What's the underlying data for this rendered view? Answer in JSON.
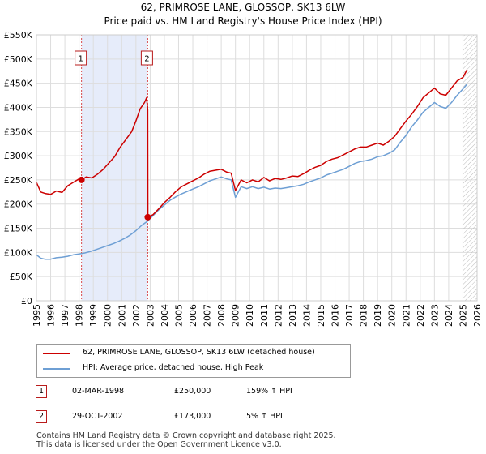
{
  "title_line1": "62, PRIMROSE LANE, GLOSSOP, SK13 6LW",
  "title_line2": "Price paid vs. HM Land Registry's House Price Index (HPI)",
  "colors": {
    "price_line": "#cc0000",
    "hpi_line": "#6e9fd4",
    "shade": "#e6ecfa",
    "grid": "#dddddd",
    "marker_border": "#b91c1c"
  },
  "legend": {
    "items": [
      {
        "label": "62, PRIMROSE LANE, GLOSSOP, SK13 6LW (detached house)"
      },
      {
        "label": "HPI: Average price, detached house, High Peak"
      }
    ]
  },
  "transactions": [
    {
      "num": "1",
      "date": "02-MAR-1998",
      "price": "£250,000",
      "hpi": "159% ↑ HPI"
    },
    {
      "num": "2",
      "date": "29-OCT-2002",
      "price": "£173,000",
      "hpi": "5% ↑ HPI"
    }
  ],
  "footer": {
    "line1": "Contains HM Land Registry data © Crown copyright and database right 2025.",
    "line2": "This data is licensed under the Open Government Licence v3.0."
  },
  "chart_data": {
    "type": "line",
    "title": "62, PRIMROSE LANE, GLOSSOP, SK13 6LW",
    "xlim": [
      1995,
      2026
    ],
    "ylim": [
      0,
      550000
    ],
    "x_ticks": [
      "1995",
      "1996",
      "1997",
      "1998",
      "1999",
      "2000",
      "2001",
      "2002",
      "2003",
      "2004",
      "2005",
      "2006",
      "2007",
      "2008",
      "2009",
      "2010",
      "2011",
      "2012",
      "2013",
      "2014",
      "2015",
      "2016",
      "2017",
      "2018",
      "2019",
      "2020",
      "2021",
      "2022",
      "2023",
      "2024",
      "2025",
      "2026"
    ],
    "y_ticks": [
      {
        "value": 0,
        "label": "£0"
      },
      {
        "value": 50000,
        "label": "£50K"
      },
      {
        "value": 100000,
        "label": "£100K"
      },
      {
        "value": 150000,
        "label": "£150K"
      },
      {
        "value": 200000,
        "label": "£200K"
      },
      {
        "value": 250000,
        "label": "£250K"
      },
      {
        "value": 300000,
        "label": "£300K"
      },
      {
        "value": 350000,
        "label": "£350K"
      },
      {
        "value": 400000,
        "label": "£400K"
      },
      {
        "value": 450000,
        "label": "£450K"
      },
      {
        "value": 500000,
        "label": "£500K"
      },
      {
        "value": 550000,
        "label": "£550K"
      }
    ],
    "shaded_ranges": [
      [
        1998.17,
        2002.83
      ]
    ],
    "hatched_from": 2025.0,
    "series": [
      {
        "name": "62, PRIMROSE LANE, GLOSSOP, SK13 6LW (detached house)",
        "x": [
          1995.0,
          1995.3,
          1995.6,
          1996.0,
          1996.4,
          1996.8,
          1997.2,
          1997.6,
          1998.0,
          1998.17,
          1998.5,
          1998.9,
          1999.3,
          1999.7,
          2000.1,
          2000.5,
          2000.9,
          2001.3,
          2001.7,
          2002.0,
          2002.3,
          2002.6,
          2002.75,
          2002.83,
          2002.84,
          2003.2,
          2003.6,
          2004.0,
          2004.4,
          2004.8,
          2005.2,
          2005.6,
          2006.0,
          2006.4,
          2006.8,
          2007.2,
          2007.6,
          2008.0,
          2008.4,
          2008.7,
          2009.0,
          2009.4,
          2009.8,
          2010.2,
          2010.6,
          2011.0,
          2011.4,
          2011.8,
          2012.2,
          2012.6,
          2013.0,
          2013.4,
          2013.8,
          2014.2,
          2014.6,
          2015.0,
          2015.4,
          2015.8,
          2016.2,
          2016.6,
          2017.0,
          2017.4,
          2017.8,
          2018.2,
          2018.6,
          2019.0,
          2019.4,
          2019.8,
          2020.2,
          2020.6,
          2021.0,
          2021.4,
          2021.8,
          2022.2,
          2022.6,
          2023.0,
          2023.4,
          2023.8,
          2024.2,
          2024.6,
          2025.0,
          2025.3
        ],
        "y": [
          245000,
          225000,
          222000,
          220000,
          227000,
          224000,
          238000,
          245000,
          252000,
          250000,
          256000,
          254000,
          262000,
          272000,
          285000,
          298000,
          318000,
          334000,
          350000,
          372000,
          397000,
          410000,
          420000,
          395000,
          173000,
          178000,
          190000,
          203000,
          214000,
          226000,
          236000,
          242000,
          248000,
          254000,
          262000,
          268000,
          270000,
          272000,
          266000,
          264000,
          228000,
          250000,
          244000,
          250000,
          246000,
          255000,
          248000,
          253000,
          251000,
          254000,
          258000,
          257000,
          263000,
          270000,
          276000,
          280000,
          288000,
          293000,
          296000,
          302000,
          308000,
          314000,
          318000,
          318000,
          322000,
          326000,
          322000,
          330000,
          340000,
          356000,
          372000,
          386000,
          402000,
          420000,
          430000,
          440000,
          428000,
          425000,
          440000,
          455000,
          462000,
          478000
        ]
      },
      {
        "name": "HPI: Average price, detached house, High Peak",
        "x": [
          1995.0,
          1995.3,
          1995.6,
          1996.0,
          1996.4,
          1996.8,
          1997.2,
          1997.6,
          1998.0,
          1998.4,
          1998.8,
          1999.2,
          1999.6,
          2000.0,
          2000.4,
          2000.8,
          2001.2,
          2001.6,
          2002.0,
          2002.4,
          2002.83,
          2003.2,
          2003.6,
          2004.0,
          2004.4,
          2004.8,
          2005.2,
          2005.6,
          2006.0,
          2006.4,
          2006.8,
          2007.2,
          2007.6,
          2008.0,
          2008.4,
          2008.7,
          2009.0,
          2009.4,
          2009.8,
          2010.2,
          2010.6,
          2011.0,
          2011.4,
          2011.8,
          2012.2,
          2012.6,
          2013.0,
          2013.4,
          2013.8,
          2014.2,
          2014.6,
          2015.0,
          2015.4,
          2015.8,
          2016.2,
          2016.6,
          2017.0,
          2017.4,
          2017.8,
          2018.2,
          2018.6,
          2019.0,
          2019.4,
          2019.8,
          2020.2,
          2020.6,
          2021.0,
          2021.4,
          2021.8,
          2022.2,
          2022.6,
          2023.0,
          2023.4,
          2023.8,
          2024.2,
          2024.6,
          2025.0,
          2025.3
        ],
        "y": [
          95000,
          88000,
          86000,
          86000,
          89000,
          90000,
          92000,
          95000,
          97000,
          99000,
          102000,
          106000,
          110000,
          114000,
          118000,
          123000,
          129000,
          136000,
          145000,
          156000,
          165000,
          176000,
          188000,
          198000,
          208000,
          215000,
          221000,
          226000,
          231000,
          236000,
          242000,
          248000,
          252000,
          256000,
          252000,
          250000,
          214000,
          236000,
          232000,
          236000,
          232000,
          235000,
          231000,
          233000,
          232000,
          234000,
          236000,
          238000,
          241000,
          246000,
          250000,
          254000,
          260000,
          264000,
          268000,
          272000,
          278000,
          284000,
          288000,
          290000,
          293000,
          298000,
          300000,
          305000,
          312000,
          328000,
          342000,
          360000,
          374000,
          390000,
          400000,
          410000,
          402000,
          398000,
          410000,
          425000,
          438000,
          448000
        ]
      }
    ],
    "markers": [
      {
        "label": "1",
        "x": 1998.17,
        "y": 250000
      },
      {
        "label": "2",
        "x": 2002.83,
        "y": 173000
      }
    ]
  }
}
